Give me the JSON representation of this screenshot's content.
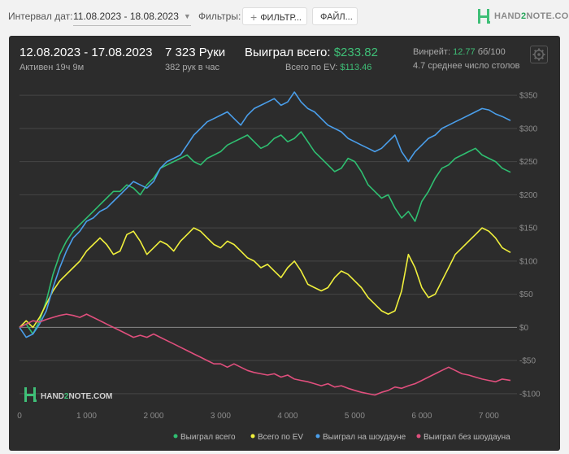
{
  "filters_bar": {
    "date_interval_label": "Интервал дат:",
    "date_range_value": "11.08.2023 - 18.08.2023",
    "filters_label": "Фильтры:",
    "filter_button_label": "ФИЛЬТР...",
    "file_button_label": "ФАЙЛ...",
    "logo_text_prefix": "HAND",
    "logo_text_two": "2",
    "logo_text_suffix": "NOTE.COM"
  },
  "summary": {
    "period": "12.08.2023 - 17.08.2023",
    "active": "Активен 19ч 9м",
    "hands": "7 323 Руки",
    "hands_per_hour": "382 рук в час",
    "won_total_label": "Выиграл всего:",
    "won_total_value": "$233.82",
    "ev_total_label": "Всего по EV:",
    "ev_total_value": "$113.46",
    "winrate_label": "Винрейт:",
    "winrate_value": "12.77",
    "winrate_unit": "бб/100",
    "avg_tables": "4.7 среднее число столов"
  },
  "watermark": {
    "prefix": "HAND",
    "two": "2",
    "suffix": "NOTE.COM"
  },
  "colors": {
    "won_total": "#2fbf71",
    "ev_total": "#f0f03c",
    "won_showdown": "#4a9eea",
    "won_no_showdown": "#e04f7d",
    "grid": "#464646",
    "zero_line": "#888888"
  },
  "chart_data": {
    "type": "line",
    "title": "",
    "xlabel": "",
    "ylabel": "",
    "xlim": [
      0,
      7323
    ],
    "ylim": [
      -110,
      360
    ],
    "x_ticks": [
      0,
      1000,
      2000,
      3000,
      4000,
      5000,
      6000,
      7000
    ],
    "x_tick_labels": [
      "0",
      "1 000",
      "2 000",
      "3 000",
      "4 000",
      "5 000",
      "6 000",
      "7 000"
    ],
    "y_ticks": [
      350,
      300,
      250,
      200,
      150,
      100,
      50,
      0,
      -50,
      -100
    ],
    "y_tick_labels": [
      "$350",
      "$300",
      "$250",
      "$200",
      "$150",
      "$100",
      "$50",
      "$0",
      "-$50",
      "-$100"
    ],
    "grid": true,
    "legend_position": "bottom-right",
    "series": [
      {
        "name": "Выиграл всего",
        "color_key": "won_total",
        "x": [
          0,
          100,
          200,
          300,
          400,
          500,
          600,
          700,
          800,
          900,
          1000,
          1100,
          1200,
          1300,
          1400,
          1500,
          1600,
          1700,
          1800,
          1900,
          2000,
          2100,
          2200,
          2300,
          2400,
          2500,
          2600,
          2700,
          2800,
          2900,
          3000,
          3100,
          3200,
          3300,
          3400,
          3500,
          3600,
          3700,
          3800,
          3900,
          4000,
          4100,
          4200,
          4300,
          4400,
          4500,
          4600,
          4700,
          4800,
          4900,
          5000,
          5100,
          5200,
          5300,
          5400,
          5500,
          5600,
          5700,
          5800,
          5900,
          6000,
          6100,
          6200,
          6300,
          6400,
          6500,
          6600,
          6700,
          6800,
          6900,
          7000,
          7100,
          7200,
          7323
        ],
        "values": [
          0,
          5,
          -10,
          10,
          40,
          80,
          110,
          130,
          145,
          155,
          165,
          175,
          185,
          195,
          205,
          205,
          215,
          210,
          200,
          215,
          225,
          240,
          245,
          250,
          255,
          260,
          250,
          245,
          255,
          260,
          265,
          275,
          280,
          285,
          290,
          280,
          270,
          275,
          285,
          290,
          280,
          285,
          295,
          280,
          265,
          255,
          245,
          235,
          240,
          255,
          250,
          235,
          215,
          205,
          195,
          200,
          180,
          165,
          175,
          160,
          190,
          205,
          225,
          240,
          245,
          255,
          260,
          265,
          270,
          260,
          255,
          250,
          240,
          234
        ]
      },
      {
        "name": "Всего по EV",
        "color_key": "ev_total",
        "x": [
          0,
          100,
          200,
          300,
          400,
          500,
          600,
          700,
          800,
          900,
          1000,
          1100,
          1200,
          1300,
          1400,
          1500,
          1600,
          1700,
          1800,
          1900,
          2000,
          2100,
          2200,
          2300,
          2400,
          2500,
          2600,
          2700,
          2800,
          2900,
          3000,
          3100,
          3200,
          3300,
          3400,
          3500,
          3600,
          3700,
          3800,
          3900,
          4000,
          4100,
          4200,
          4300,
          4400,
          4500,
          4600,
          4700,
          4800,
          4900,
          5000,
          5100,
          5200,
          5300,
          5400,
          5500,
          5600,
          5700,
          5800,
          5900,
          6000,
          6100,
          6200,
          6300,
          6400,
          6500,
          6600,
          6700,
          6800,
          6900,
          7000,
          7100,
          7200,
          7323
        ],
        "values": [
          0,
          10,
          0,
          15,
          35,
          55,
          70,
          80,
          90,
          100,
          115,
          125,
          135,
          125,
          110,
          115,
          140,
          145,
          130,
          110,
          120,
          130,
          125,
          115,
          130,
          140,
          150,
          145,
          135,
          125,
          120,
          130,
          125,
          115,
          105,
          100,
          90,
          95,
          85,
          75,
          90,
          100,
          85,
          65,
          60,
          55,
          60,
          75,
          85,
          80,
          70,
          60,
          45,
          35,
          25,
          20,
          25,
          55,
          110,
          90,
          60,
          45,
          50,
          70,
          90,
          110,
          120,
          130,
          140,
          150,
          145,
          135,
          120,
          113
        ]
      },
      {
        "name": "Выиграл на шоудауне",
        "color_key": "won_showdown",
        "x": [
          0,
          100,
          200,
          300,
          400,
          500,
          600,
          700,
          800,
          900,
          1000,
          1100,
          1200,
          1300,
          1400,
          1500,
          1600,
          1700,
          1800,
          1900,
          2000,
          2100,
          2200,
          2300,
          2400,
          2500,
          2600,
          2700,
          2800,
          2900,
          3000,
          3100,
          3200,
          3300,
          3400,
          3500,
          3600,
          3700,
          3800,
          3900,
          4000,
          4100,
          4200,
          4300,
          4400,
          4500,
          4600,
          4700,
          4800,
          4900,
          5000,
          5100,
          5200,
          5300,
          5400,
          5500,
          5600,
          5700,
          5800,
          5900,
          6000,
          6100,
          6200,
          6300,
          6400,
          6500,
          6600,
          6700,
          6800,
          6900,
          7000,
          7100,
          7200,
          7323
        ],
        "values": [
          0,
          -15,
          -10,
          5,
          25,
          60,
          90,
          115,
          135,
          145,
          160,
          165,
          175,
          180,
          190,
          200,
          210,
          220,
          215,
          210,
          220,
          240,
          250,
          255,
          260,
          275,
          290,
          300,
          310,
          315,
          320,
          325,
          315,
          305,
          320,
          330,
          335,
          340,
          345,
          335,
          340,
          355,
          340,
          330,
          325,
          315,
          305,
          300,
          295,
          285,
          280,
          275,
          270,
          265,
          270,
          280,
          290,
          265,
          250,
          265,
          275,
          285,
          290,
          300,
          305,
          310,
          315,
          320,
          325,
          330,
          328,
          322,
          318,
          312
        ]
      },
      {
        "name": "Выиграл без шоудауна",
        "color_key": "won_no_showdown",
        "x": [
          0,
          100,
          200,
          300,
          400,
          500,
          600,
          700,
          800,
          900,
          1000,
          1100,
          1200,
          1300,
          1400,
          1500,
          1600,
          1700,
          1800,
          1900,
          2000,
          2100,
          2200,
          2300,
          2400,
          2500,
          2600,
          2700,
          2800,
          2900,
          3000,
          3100,
          3200,
          3300,
          3400,
          3500,
          3600,
          3700,
          3800,
          3900,
          4000,
          4100,
          4200,
          4300,
          4400,
          4500,
          4600,
          4700,
          4800,
          4900,
          5000,
          5100,
          5200,
          5300,
          5400,
          5500,
          5600,
          5700,
          5800,
          5900,
          6000,
          6100,
          6200,
          6300,
          6400,
          6500,
          6600,
          6700,
          6800,
          6900,
          7000,
          7100,
          7200,
          7323
        ],
        "values": [
          0,
          5,
          10,
          8,
          12,
          15,
          18,
          20,
          18,
          15,
          20,
          15,
          10,
          5,
          0,
          -5,
          -10,
          -15,
          -12,
          -15,
          -10,
          -15,
          -20,
          -25,
          -30,
          -35,
          -40,
          -45,
          -50,
          -55,
          -55,
          -60,
          -55,
          -60,
          -65,
          -68,
          -70,
          -72,
          -70,
          -75,
          -72,
          -78,
          -80,
          -82,
          -85,
          -88,
          -85,
          -90,
          -88,
          -92,
          -95,
          -98,
          -100,
          -102,
          -98,
          -95,
          -90,
          -92,
          -88,
          -85,
          -80,
          -75,
          -70,
          -65,
          -60,
          -65,
          -70,
          -72,
          -75,
          -78,
          -80,
          -82,
          -78,
          -80
        ]
      }
    ]
  }
}
